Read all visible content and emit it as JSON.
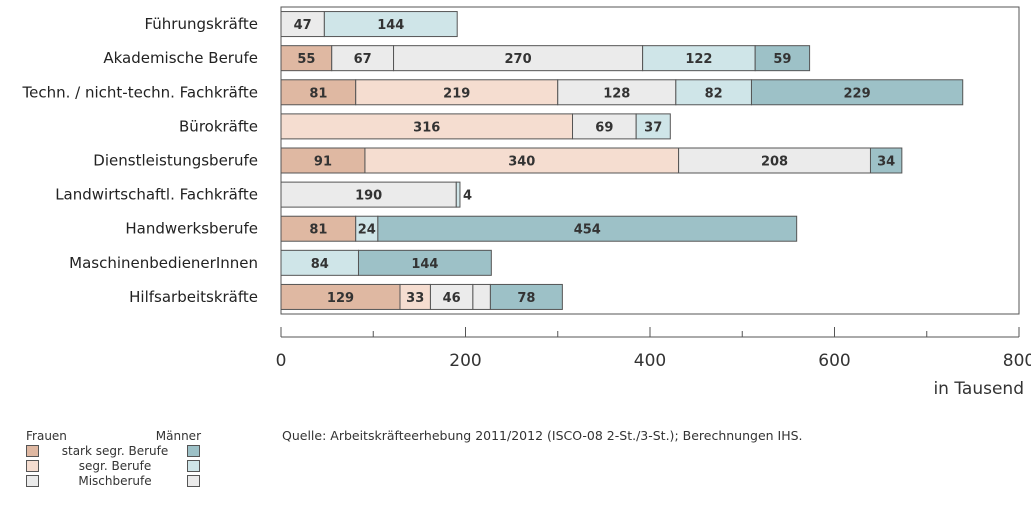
{
  "chart_data": {
    "type": "bar",
    "orientation": "horizontal",
    "stacked": true,
    "categories": [
      "Führungskräfte",
      "Akademische Berufe",
      "Techn. / nicht-techn. Fachkräfte",
      "Bürokräfte",
      "Dienstleistungsberufe",
      "Landwirtschaftl. Fachkräfte",
      "Handwerksberufe",
      "MaschinenbedienerInnen",
      "Hilfsarbeitskräfte"
    ],
    "series": [
      {
        "name": "Frauen stark segr. Berufe",
        "color": "#dfb8a2",
        "values": [
          0,
          55,
          81,
          0,
          91,
          0,
          81,
          0,
          129
        ]
      },
      {
        "name": "Frauen segr. Berufe",
        "color": "#f5ddd0",
        "values": [
          0,
          0,
          219,
          316,
          340,
          0,
          0,
          0,
          33
        ]
      },
      {
        "name": "Frauen Mischberufe",
        "color": "#ebebeb",
        "values": [
          47,
          67,
          0,
          0,
          0,
          190,
          0,
          0,
          46
        ]
      },
      {
        "name": "Männer Mischberufe",
        "color": "#ebebeb",
        "values": [
          0,
          270,
          128,
          69,
          208,
          0,
          0,
          0,
          19
        ]
      },
      {
        "name": "Männer segr. Berufe",
        "color": "#cfe5e8",
        "values": [
          144,
          122,
          82,
          37,
          0,
          4,
          24,
          84,
          0
        ]
      },
      {
        "name": "Männer stark segr. Berufe",
        "color": "#9dc1c7",
        "values": [
          0,
          59,
          229,
          0,
          34,
          0,
          454,
          144,
          78
        ]
      }
    ],
    "xlim": [
      0,
      800
    ],
    "xticks": [
      "0",
      "200",
      "400",
      "600",
      "800"
    ],
    "xlabel": "in Tausend",
    "grid": false,
    "legend_position": "bottom-left"
  },
  "legend": {
    "left_header": "Frauen",
    "right_header": "Männer",
    "items": [
      {
        "label": "stark segr. Berufe",
        "female_color": "#dfb8a2",
        "male_color": "#9dc1c7"
      },
      {
        "label": "segr. Berufe",
        "female_color": "#f5ddd0",
        "male_color": "#cfe5e8"
      },
      {
        "label": "Mischberufe",
        "female_color": "#ebebeb",
        "male_color": "#ebebeb"
      }
    ]
  },
  "source": "Quelle: Arbeitskräfteerhebung 2011/2012 (ISCO-08 2-St./3-St.); Berechnungen IHS."
}
